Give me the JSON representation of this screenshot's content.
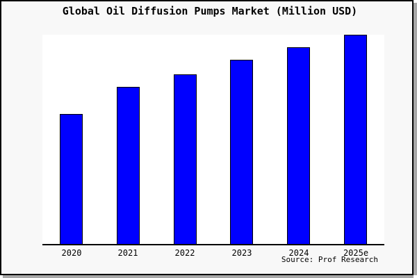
{
  "window": {
    "background": "#f8f8f8",
    "frame_border_color": "#000000",
    "frame_shadow_color": "#a8a8a8"
  },
  "header": {
    "title": "Global Oil Diffusion Pumps Market (Million USD)"
  },
  "footer": {
    "source_label": "Source: Prof Research"
  },
  "chart_data": {
    "type": "bar",
    "title": "Global Oil Diffusion Pumps Market (Million USD)",
    "categories": [
      "2020",
      "2021",
      "2022",
      "2023",
      "2024",
      "2025e"
    ],
    "values": [
      62,
      75,
      81,
      88,
      94,
      100
    ],
    "values_note": "No y-axis or data labels are shown in the image; values are relative bar heights with the tallest bar (2025e) = 100.",
    "xlabel": "",
    "ylabel": "",
    "ylim": [
      0,
      100
    ],
    "grid": false,
    "legend": null,
    "bar_color": "#0000FF",
    "bar_border_color": "#000000",
    "plot_background": "#FFFFFF",
    "axis_color": "#000000",
    "source": "Source: Prof Research"
  }
}
